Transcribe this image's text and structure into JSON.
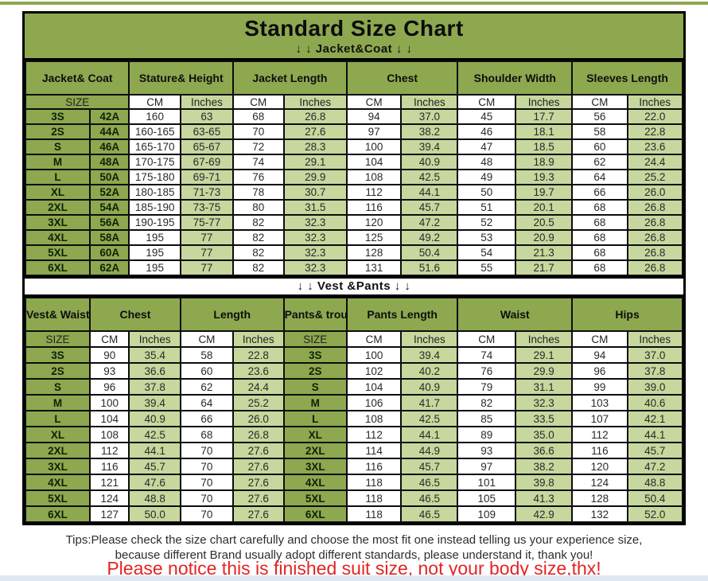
{
  "title": "Standard Size Chart",
  "units_note": "CM / Inches",
  "colors": {
    "olive_green": "#8da84f",
    "light_green": "#c7d79e",
    "cell_white": "#ffffff",
    "border_black": "#000000",
    "notice_red": "#e32424"
  },
  "chart_data": [
    {
      "type": "table",
      "section_label": "↓ ↓  Jacket&Coat ↓ ↓",
      "column_groups": [
        "Jacket&\nCoat",
        "Stature&\nHeight",
        "Jacket\nLength",
        "Chest",
        "Shoulder\nWidth",
        "Sleeves\nLength"
      ],
      "unit_row": [
        "SIZE",
        "CM",
        "Inches",
        "CM",
        "Inches",
        "CM",
        "Inches",
        "CM",
        "Inches",
        "CM",
        "Inches"
      ],
      "rows": [
        [
          "3S",
          "42A",
          "160",
          "63",
          "68",
          "26.8",
          "94",
          "37.0",
          "45",
          "17.7",
          "56",
          "22.0"
        ],
        [
          "2S",
          "44A",
          "160-165",
          "63-65",
          "70",
          "27.6",
          "97",
          "38.2",
          "46",
          "18.1",
          "58",
          "22.8"
        ],
        [
          "S",
          "46A",
          "165-170",
          "65-67",
          "72",
          "28.3",
          "100",
          "39.4",
          "47",
          "18.5",
          "60",
          "23.6"
        ],
        [
          "M",
          "48A",
          "170-175",
          "67-69",
          "74",
          "29.1",
          "104",
          "40.9",
          "48",
          "18.9",
          "62",
          "24.4"
        ],
        [
          "L",
          "50A",
          "175-180",
          "69-71",
          "76",
          "29.9",
          "108",
          "42.5",
          "49",
          "19.3",
          "64",
          "25.2"
        ],
        [
          "XL",
          "52A",
          "180-185",
          "71-73",
          "78",
          "30.7",
          "112",
          "44.1",
          "50",
          "19.7",
          "66",
          "26.0"
        ],
        [
          "2XL",
          "54A",
          "185-190",
          "73-75",
          "80",
          "31.5",
          "116",
          "45.7",
          "51",
          "20.1",
          "68",
          "26.8"
        ],
        [
          "3XL",
          "56A",
          "190-195",
          "75-77",
          "82",
          "32.3",
          "120",
          "47.2",
          "52",
          "20.5",
          "68",
          "26.8"
        ],
        [
          "4XL",
          "58A",
          "195",
          "77",
          "82",
          "32.3",
          "125",
          "49.2",
          "53",
          "20.9",
          "68",
          "26.8"
        ],
        [
          "5XL",
          "60A",
          "195",
          "77",
          "82",
          "32.3",
          "128",
          "50.4",
          "54",
          "21.3",
          "68",
          "26.8"
        ],
        [
          "6XL",
          "62A",
          "195",
          "77",
          "82",
          "32.3",
          "131",
          "51.6",
          "55",
          "21.7",
          "68",
          "26.8"
        ]
      ]
    },
    {
      "type": "table",
      "section_label": "↓ ↓  Vest &Pants ↓ ↓",
      "column_groups": [
        "Vest&\nWaistcoat",
        "Chest",
        "Length",
        "Pants&\ntrousers",
        "Pants\nLength",
        "Waist",
        "Hips"
      ],
      "unit_row": [
        "SIZE",
        "CM",
        "Inches",
        "CM",
        "Inches",
        "SIZE",
        "CM",
        "Inches",
        "CM",
        "Inches",
        "CM",
        "Inches"
      ],
      "rows": [
        [
          "3S",
          "90",
          "35.4",
          "58",
          "22.8",
          "3S",
          "100",
          "39.4",
          "74",
          "29.1",
          "94",
          "37.0"
        ],
        [
          "2S",
          "93",
          "36.6",
          "60",
          "23.6",
          "2S",
          "102",
          "40.2",
          "76",
          "29.9",
          "96",
          "37.8"
        ],
        [
          "S",
          "96",
          "37.8",
          "62",
          "24.4",
          "S",
          "104",
          "40.9",
          "79",
          "31.1",
          "99",
          "39.0"
        ],
        [
          "M",
          "100",
          "39.4",
          "64",
          "25.2",
          "M",
          "106",
          "41.7",
          "82",
          "32.3",
          "103",
          "40.6"
        ],
        [
          "L",
          "104",
          "40.9",
          "66",
          "26.0",
          "L",
          "108",
          "42.5",
          "85",
          "33.5",
          "107",
          "42.1"
        ],
        [
          "XL",
          "108",
          "42.5",
          "68",
          "26.8",
          "XL",
          "112",
          "44.1",
          "89",
          "35.0",
          "112",
          "44.1"
        ],
        [
          "2XL",
          "112",
          "44.1",
          "70",
          "27.6",
          "2XL",
          "114",
          "44.9",
          "93",
          "36.6",
          "116",
          "45.7"
        ],
        [
          "3XL",
          "116",
          "45.7",
          "70",
          "27.6",
          "3XL",
          "116",
          "45.7",
          "97",
          "38.2",
          "120",
          "47.2"
        ],
        [
          "4XL",
          "121",
          "47.6",
          "70",
          "27.6",
          "4XL",
          "118",
          "46.5",
          "101",
          "39.8",
          "124",
          "48.8"
        ],
        [
          "5XL",
          "124",
          "48.8",
          "70",
          "27.6",
          "5XL",
          "118",
          "46.5",
          "105",
          "41.3",
          "128",
          "50.4"
        ],
        [
          "6XL",
          "127",
          "50.0",
          "70",
          "27.6",
          "6XL",
          "118",
          "46.5",
          "109",
          "42.9",
          "132",
          "52.0"
        ]
      ]
    }
  ],
  "tips": {
    "line1": "Tips:Please check the size chart carefully and choose the most fit one instead telling us your experience size,",
    "line2": "because different Brand usually adopt different standards, please understand it, thank you!"
  },
  "notice": "Please notice this is finished suit size, not your body size,thx!"
}
